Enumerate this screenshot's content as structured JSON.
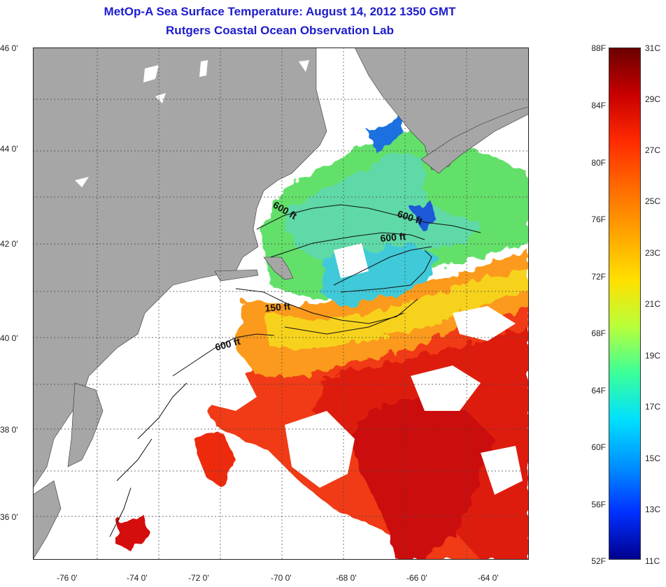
{
  "title": "MetOp-A Sea Surface Temperature:  August 14, 2012 1350 GMT",
  "subtitle": "Rutgers Coastal Ocean Observation Lab",
  "lat_labels": [
    "46 0'",
    "44 0'",
    "42 0'",
    "40 0'",
    "38 0'",
    "36 0'"
  ],
  "lon_labels": [
    "-76 0'",
    "-74 0'",
    "-72 0'",
    "-70 0'",
    "-68 0'",
    "-66 0'",
    "-64 0'"
  ],
  "contour_labels": [
    "600 ft",
    "600 ft",
    "600 ft",
    "150 ft",
    "600 ft"
  ],
  "colorbar": {
    "f_labels": [
      "88F",
      "84F",
      "80F",
      "76F",
      "72F",
      "68F",
      "64F",
      "60F",
      "56F",
      "52F"
    ],
    "c_labels": [
      "31C",
      "29C",
      "27C",
      "25C",
      "23C",
      "21C",
      "19C",
      "17C",
      "15C",
      "13C",
      "11C"
    ],
    "colors": [
      "#6b0000",
      "#c80000",
      "#ff2a00",
      "#ff6a00",
      "#ffa500",
      "#ffe000",
      "#b8ff3a",
      "#3aff9a",
      "#00e0ff",
      "#0090ff",
      "#0030ff",
      "#00008f"
    ]
  },
  "colors": {
    "land": "#a6a6a6",
    "title": "#1c1ccc"
  }
}
